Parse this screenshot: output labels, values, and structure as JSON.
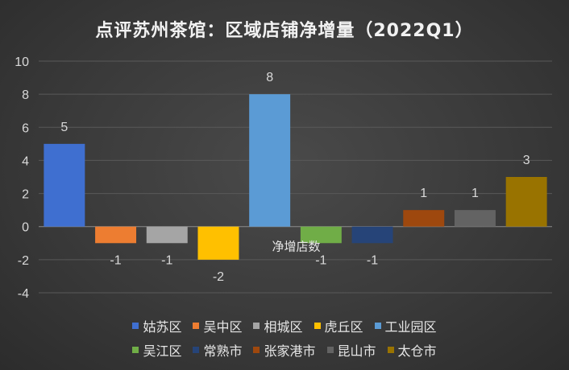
{
  "chart_data": {
    "type": "bar",
    "title": "点评苏州茶馆：区域店铺净增量（2022Q1）",
    "series_name": "净增店数",
    "categories": [
      "姑苏区",
      "吴中区",
      "相城区",
      "虎丘区",
      "工业园区",
      "吴江区",
      "常熟市",
      "张家港市",
      "昆山市",
      "太仓市"
    ],
    "values": [
      5,
      -1,
      -1,
      -2,
      8,
      -1,
      -1,
      1,
      1,
      3
    ],
    "colors": [
      "#3f6fd0",
      "#ed7d31",
      "#a5a5a5",
      "#ffc000",
      "#5b9bd5",
      "#70ad47",
      "#264478",
      "#9e480e",
      "#636363",
      "#997300"
    ],
    "ylim": [
      -4,
      10
    ],
    "yticks": [
      -4,
      -2,
      0,
      2,
      4,
      6,
      8,
      10
    ],
    "grid": true,
    "legend_position": "bottom"
  }
}
